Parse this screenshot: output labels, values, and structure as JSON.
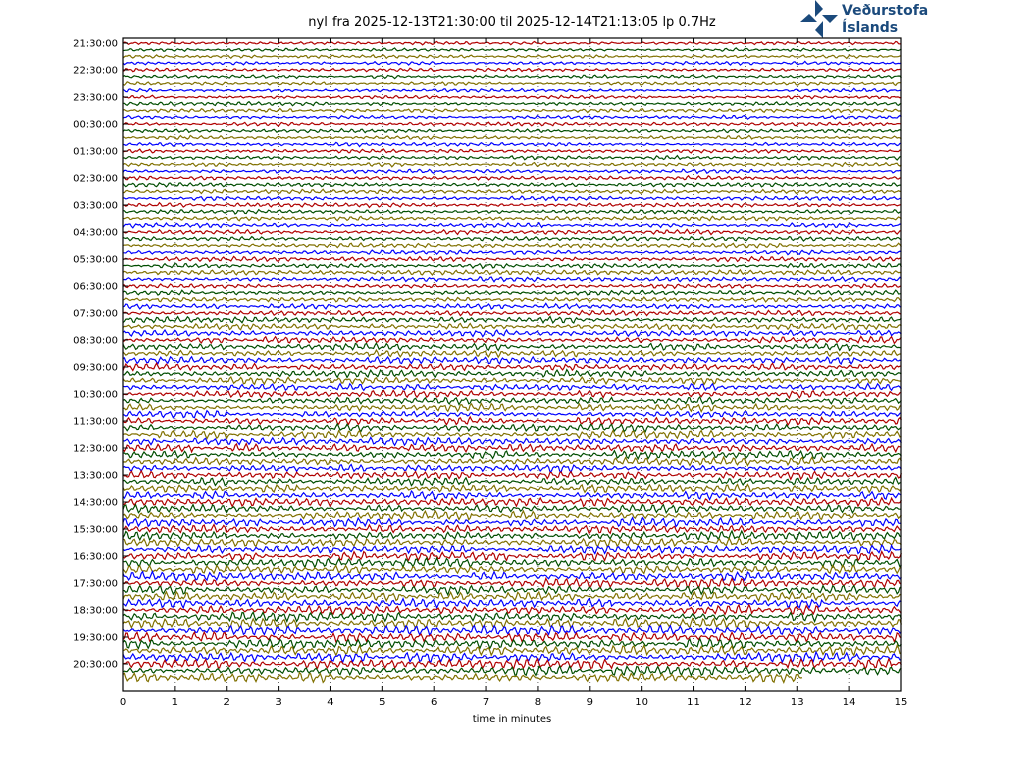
{
  "chart_data": {
    "type": "line",
    "title": "nyl fra 2025-12-13T21:30:00 til 2025-12-14T21:13:05 lp 0.7Hz",
    "xlabel": "time in minutes",
    "xlim": [
      0,
      15
    ],
    "xticks": [
      "0",
      "1",
      "2",
      "3",
      "4",
      "5",
      "6",
      "7",
      "8",
      "9",
      "10",
      "11",
      "12",
      "13",
      "14",
      "15"
    ],
    "ytick_labels": [
      "21:30:00",
      "22:30:00",
      "23:30:00",
      "00:30:00",
      "01:30:00",
      "02:30:00",
      "03:30:00",
      "04:30:00",
      "05:30:00",
      "06:30:00",
      "07:30:00",
      "08:30:00",
      "09:30:00",
      "10:30:00",
      "11:30:00",
      "12:30:00",
      "13:30:00",
      "14:30:00",
      "15:30:00",
      "16:30:00",
      "17:30:00",
      "18:30:00",
      "19:30:00",
      "20:30:00"
    ],
    "minutes_per_trace": 15,
    "trace_count": 95,
    "last_trace_end_minute": 13.08,
    "trace_colors": [
      "#b00000",
      "#004d00",
      "#807000",
      "#0000ff"
    ],
    "grid": "vertical dotted at each minute"
  },
  "logo": {
    "line1": "Veðurstofa",
    "line2": "Íslands",
    "color": "#1b4a7c"
  }
}
